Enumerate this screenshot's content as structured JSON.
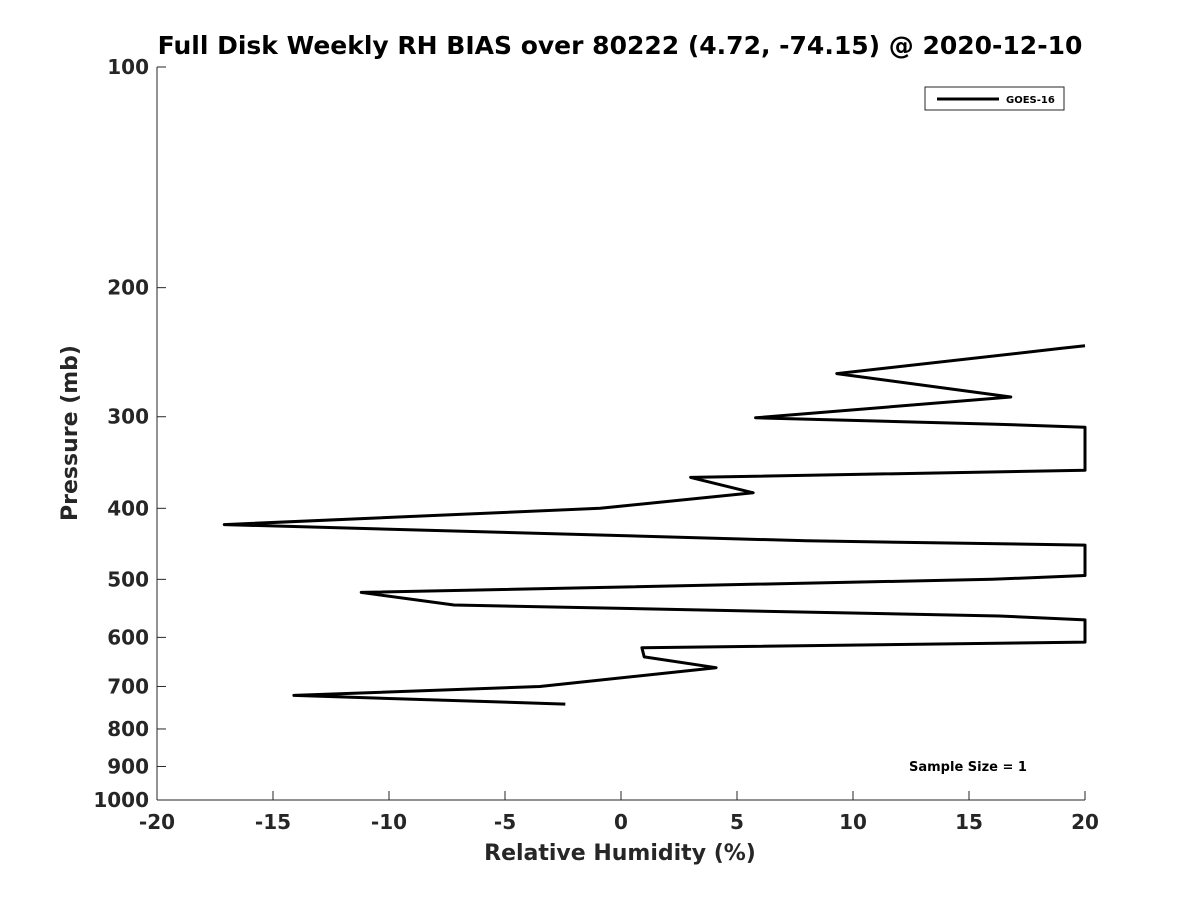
{
  "chart_data": {
    "type": "line",
    "title": "Full Disk Weekly RH BIAS over 80222 (4.72, -74.15) @ 2020-12-10",
    "xlabel": "Relative Humidity (%)",
    "ylabel": "Pressure (mb)",
    "xlim": [
      -20,
      20
    ],
    "ylim": [
      1000,
      100
    ],
    "y_scale": "log",
    "y_reversed": true,
    "xticks": [
      -20,
      -15,
      -10,
      -5,
      0,
      5,
      10,
      15,
      20
    ],
    "xtick_labels": [
      "-20",
      "-15",
      "-10",
      "-5",
      "0",
      "5",
      "10",
      "15",
      "20"
    ],
    "yticks": [
      100,
      200,
      300,
      400,
      500,
      600,
      700,
      800,
      900,
      1000
    ],
    "ytick_labels": [
      "100",
      "200",
      "300",
      "400",
      "500",
      "600",
      "700",
      "800",
      "900",
      "1000"
    ],
    "grid": false,
    "legend_position": "top-right",
    "series": [
      {
        "name": "GOES-16",
        "color": "#000000",
        "x": [
          20,
          19,
          9.3,
          16.8,
          5.8,
          16,
          20,
          20,
          3,
          5.7,
          -0.9,
          -17.1,
          8,
          20,
          20,
          16,
          -11.2,
          -7.2,
          16.3,
          20,
          20,
          0.9,
          1,
          4.1,
          -3.5,
          -14.1,
          -2.4
        ],
        "y": [
          240,
          242,
          262,
          282,
          301,
          307,
          310,
          355,
          363,
          381,
          400,
          421,
          443,
          449,
          494,
          500,
          521,
          542,
          561,
          568,
          609,
          620,
          638,
          660,
          700,
          720,
          740
        ]
      }
    ],
    "annotations": [
      "Sample Size = 1"
    ]
  }
}
